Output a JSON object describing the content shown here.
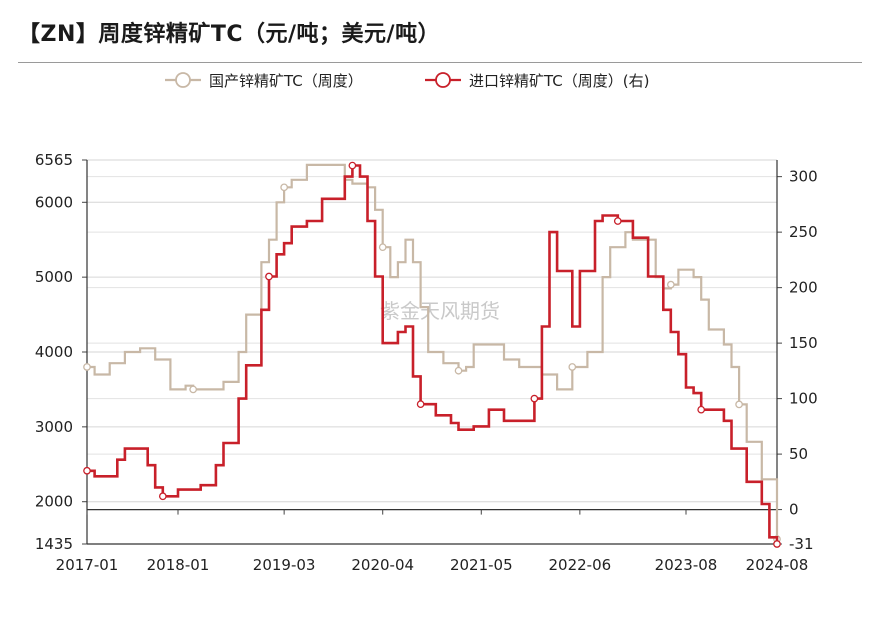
{
  "title": "【ZN】周度锌精矿TC（元/吨；美元/吨）",
  "watermark": "紫金天风期货",
  "chart_data": {
    "type": "line",
    "title": "【ZN】周度锌精矿TC（元/吨；美元/吨）",
    "x_tick_labels": [
      "2017-01",
      "2018-01",
      "2019-03",
      "2020-04",
      "2021-05",
      "2022-06",
      "2023-08",
      "2024-08"
    ],
    "x_range": [
      "2017-01",
      "2024-08"
    ],
    "y_left": {
      "ticks": [
        1435,
        2000,
        3000,
        4000,
        5000,
        6000,
        6565
      ],
      "range": [
        1435,
        6565
      ]
    },
    "y_right": {
      "ticks": [
        -31,
        0,
        50,
        100,
        150,
        200,
        250,
        300
      ],
      "range": [
        -31,
        315
      ]
    },
    "legend_position": "top-center",
    "grid": "horizontal",
    "series": [
      {
        "name": "国产锌精矿TC（周度）",
        "axis": "left",
        "color": "#c8b8a6",
        "points": [
          [
            "2017-01",
            3800
          ],
          [
            "2017-02",
            3700
          ],
          [
            "2017-04",
            3850
          ],
          [
            "2017-06",
            4000
          ],
          [
            "2017-08",
            4050
          ],
          [
            "2017-10",
            3900
          ],
          [
            "2017-12",
            3500
          ],
          [
            "2018-02",
            3550
          ],
          [
            "2018-03",
            3500
          ],
          [
            "2018-06",
            3500
          ],
          [
            "2018-07",
            3600
          ],
          [
            "2018-09",
            4000
          ],
          [
            "2018-10",
            4500
          ],
          [
            "2018-12",
            5200
          ],
          [
            "2019-01",
            5500
          ],
          [
            "2019-02",
            6000
          ],
          [
            "2019-03",
            6200
          ],
          [
            "2019-04",
            6300
          ],
          [
            "2019-06",
            6500
          ],
          [
            "2019-10",
            6500
          ],
          [
            "2019-11",
            6300
          ],
          [
            "2019-12",
            6250
          ],
          [
            "2020-02",
            6200
          ],
          [
            "2020-03",
            5900
          ],
          [
            "2020-04",
            5400
          ],
          [
            "2020-05",
            5000
          ],
          [
            "2020-06",
            5200
          ],
          [
            "2020-07",
            5500
          ],
          [
            "2020-08",
            5200
          ],
          [
            "2020-09",
            4600
          ],
          [
            "2020-10",
            4000
          ],
          [
            "2020-12",
            3850
          ],
          [
            "2021-02",
            3750
          ],
          [
            "2021-03",
            3800
          ],
          [
            "2021-04",
            4100
          ],
          [
            "2021-06",
            4100
          ],
          [
            "2021-08",
            3900
          ],
          [
            "2021-10",
            3800
          ],
          [
            "2022-01",
            3700
          ],
          [
            "2022-03",
            3500
          ],
          [
            "2022-05",
            3800
          ],
          [
            "2022-07",
            4000
          ],
          [
            "2022-09",
            5000
          ],
          [
            "2022-10",
            5400
          ],
          [
            "2022-12",
            5600
          ],
          [
            "2023-01",
            5500
          ],
          [
            "2023-04",
            5000
          ],
          [
            "2023-05",
            4850
          ],
          [
            "2023-06",
            4900
          ],
          [
            "2023-07",
            5100
          ],
          [
            "2023-08",
            5100
          ],
          [
            "2023-09",
            5000
          ],
          [
            "2023-10",
            4700
          ],
          [
            "2023-11",
            4300
          ],
          [
            "2024-01",
            4100
          ],
          [
            "2024-02",
            3800
          ],
          [
            "2024-03",
            3300
          ],
          [
            "2024-04",
            2800
          ],
          [
            "2024-06",
            2300
          ],
          [
            "2024-08",
            1500
          ]
        ]
      },
      {
        "name": "进口锌精矿TC（周度）(右)",
        "axis": "right",
        "color": "#c8202a",
        "points": [
          [
            "2017-01",
            35
          ],
          [
            "2017-02",
            30
          ],
          [
            "2017-04",
            30
          ],
          [
            "2017-05",
            45
          ],
          [
            "2017-06",
            55
          ],
          [
            "2017-08",
            55
          ],
          [
            "2017-09",
            40
          ],
          [
            "2017-10",
            20
          ],
          [
            "2017-11",
            12
          ],
          [
            "2018-01",
            18
          ],
          [
            "2018-04",
            22
          ],
          [
            "2018-06",
            40
          ],
          [
            "2018-07",
            60
          ],
          [
            "2018-09",
            100
          ],
          [
            "2018-10",
            130
          ],
          [
            "2018-12",
            180
          ],
          [
            "2019-01",
            210
          ],
          [
            "2019-02",
            230
          ],
          [
            "2019-03",
            240
          ],
          [
            "2019-04",
            255
          ],
          [
            "2019-06",
            260
          ],
          [
            "2019-08",
            280
          ],
          [
            "2019-10",
            280
          ],
          [
            "2019-11",
            300
          ],
          [
            "2019-12",
            310
          ],
          [
            "2020-01",
            300
          ],
          [
            "2020-02",
            260
          ],
          [
            "2020-03",
            210
          ],
          [
            "2020-04",
            150
          ],
          [
            "2020-06",
            160
          ],
          [
            "2020-07",
            165
          ],
          [
            "2020-08",
            120
          ],
          [
            "2020-09",
            95
          ],
          [
            "2020-11",
            85
          ],
          [
            "2021-01",
            78
          ],
          [
            "2021-02",
            72
          ],
          [
            "2021-04",
            75
          ],
          [
            "2021-06",
            90
          ],
          [
            "2021-08",
            80
          ],
          [
            "2021-10",
            80
          ],
          [
            "2021-12",
            100
          ],
          [
            "2022-01",
            165
          ],
          [
            "2022-02",
            250
          ],
          [
            "2022-03",
            215
          ],
          [
            "2022-05",
            165
          ],
          [
            "2022-06",
            215
          ],
          [
            "2022-08",
            260
          ],
          [
            "2022-09",
            265
          ],
          [
            "2022-11",
            260
          ],
          [
            "2023-01",
            245
          ],
          [
            "2023-03",
            210
          ],
          [
            "2023-05",
            180
          ],
          [
            "2023-06",
            160
          ],
          [
            "2023-07",
            140
          ],
          [
            "2023-08",
            110
          ],
          [
            "2023-09",
            105
          ],
          [
            "2023-10",
            90
          ],
          [
            "2024-01",
            80
          ],
          [
            "2024-02",
            55
          ],
          [
            "2024-04",
            25
          ],
          [
            "2024-06",
            5
          ],
          [
            "2024-07",
            -25
          ],
          [
            "2024-08",
            -31
          ]
        ]
      }
    ]
  }
}
